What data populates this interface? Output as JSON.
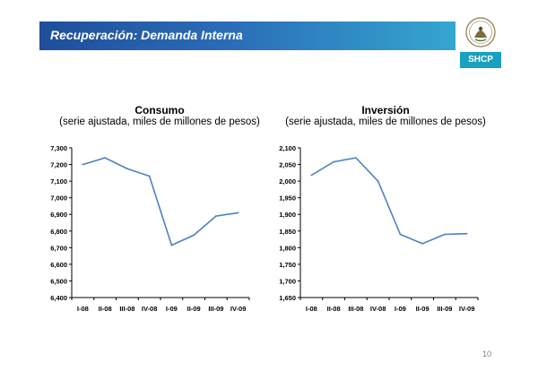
{
  "header": {
    "title": "Recuperación: Demanda Interna",
    "logo_text": "SHCP"
  },
  "page_number": "10",
  "colors": {
    "header_start": "#1f4e9a",
    "header_end": "#34a6cf",
    "line": "#4f81bd",
    "logo_band": "#1aa0c0"
  },
  "chart_data": [
    {
      "type": "line",
      "title": "Consumo",
      "subtitle": "(serie ajustada, miles de millones de pesos)",
      "categories": [
        "I-08",
        "II-08",
        "III-08",
        "IV-08",
        "I-09",
        "II-09",
        "III-09",
        "IV-09"
      ],
      "values": [
        7200,
        7240,
        7175,
        7130,
        6715,
        6775,
        6890,
        6910
      ],
      "ylim": [
        6400,
        7300
      ],
      "yticks": [
        6400,
        6500,
        6600,
        6700,
        6800,
        6900,
        7000,
        7100,
        7200,
        7300
      ],
      "ytick_labels": [
        "6,400",
        "6,500",
        "6,600",
        "6,700",
        "6,800",
        "6,900",
        "7,000",
        "7,100",
        "7,200",
        "7,300"
      ],
      "grid": false
    },
    {
      "type": "line",
      "title": "Inversión",
      "subtitle": "(serie ajustada, miles de millones de pesos)",
      "categories": [
        "I-08",
        "II-08",
        "III-08",
        "IV-08",
        "I-09",
        "II-09",
        "III-09",
        "IV-09"
      ],
      "values": [
        2018,
        2058,
        2070,
        2000,
        1840,
        1812,
        1840,
        1842
      ],
      "ylim": [
        1650,
        2100
      ],
      "yticks": [
        1650,
        1700,
        1750,
        1800,
        1850,
        1900,
        1950,
        2000,
        2050,
        2100
      ],
      "ytick_labels": [
        "1,650",
        "1,700",
        "1,750",
        "1,800",
        "1,850",
        "1,900",
        "1,950",
        "2,000",
        "2,050",
        "2,100"
      ],
      "grid": false
    }
  ]
}
